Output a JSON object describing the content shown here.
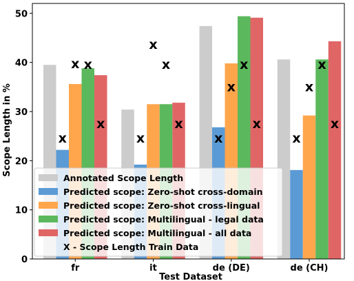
{
  "chart_data": {
    "type": "bar",
    "xlabel": "Test Dataset",
    "ylabel": "Scope Length in %",
    "ylim": [
      0,
      52
    ],
    "yticks": [
      0,
      10,
      20,
      30,
      40,
      50
    ],
    "categories": [
      "fr",
      "it",
      "de (DE)",
      "de (CH)"
    ],
    "series": [
      {
        "name": "Annotated Scope Length",
        "color": "#cccccc",
        "values": [
          39.5,
          30.4,
          47.4,
          40.6
        ]
      },
      {
        "name": "Predicted scope: Zero-shot cross-domain",
        "color": "#5b9bd5",
        "values": [
          22.2,
          19.2,
          26.8,
          18.1
        ]
      },
      {
        "name": "Predicted scope: Zero-shot cross-lingual",
        "color": "#ffa64d",
        "values": [
          35.6,
          31.5,
          39.8,
          29.2
        ]
      },
      {
        "name": "Predicted scope: Multilingual - legal data",
        "color": "#5cb85c",
        "values": [
          38.8,
          31.5,
          49.4,
          40.6
        ]
      },
      {
        "name": "Predicted scope: Multilingual - all data",
        "color": "#e06666",
        "values": [
          37.4,
          31.8,
          49.1,
          44.3
        ]
      }
    ],
    "train_markers": {
      "label": "X - Scope Length Train Data",
      "symbol": "x",
      "values": [
        [
          null,
          24.5,
          39.7,
          39.5,
          27.5
        ],
        [
          null,
          24.5,
          43.6,
          39.5,
          27.5
        ],
        [
          null,
          24.5,
          35.0,
          39.5,
          27.5
        ],
        [
          null,
          24.5,
          35.0,
          39.5,
          27.5
        ]
      ]
    },
    "legend_position": "lower-center",
    "grid": false
  }
}
